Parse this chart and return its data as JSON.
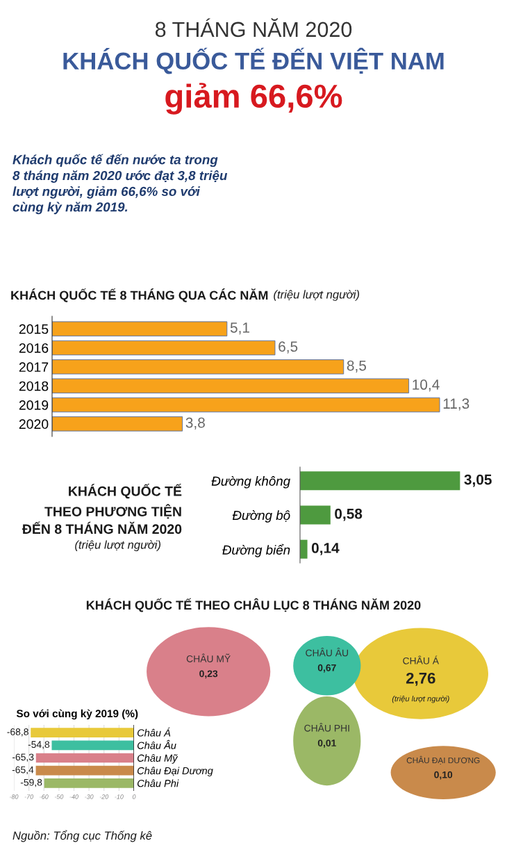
{
  "chart_data": [
    {
      "type": "other",
      "title": "8 THÁNG NĂM 2020",
      "subtitle": "KHÁCH QUỐC TẾ ĐẾN VIỆT NAM",
      "annotations": [
        "giảm 66,6%",
        "Khách quốc tế đến nước ta trong\n8 tháng năm 2020 ước đạt 3,8 triệu\nlượt người, giảm 66,6% so với\ncùng kỳ năm 2019."
      ]
    },
    {
      "type": "bar",
      "orientation": "horizontal",
      "title": "KHÁCH QUỐC TẾ 8 THÁNG QUA CÁC NĂM",
      "subtitle": "(triệu lượt người)",
      "categories": [
        "2015",
        "2016",
        "2017",
        "2018",
        "2019",
        "2020"
      ],
      "values": [
        5.1,
        6.5,
        8.5,
        10.4,
        11.3,
        3.8
      ],
      "color": "#f7a21b",
      "value_labels": [
        "5,1",
        "6,5",
        "8,5",
        "10,4",
        "11,3",
        "3,8"
      ],
      "tick_labels": "y"
    },
    {
      "type": "bar",
      "orientation": "horizontal",
      "title": "KHÁCH QUỐC TẾ\nTHEO PHƯƠNG TIỆN\nĐẾN 8 THÁNG NĂM 2020",
      "subtitle": "(triệu lượt người)",
      "categories": [
        "Đường không",
        "Đường bộ",
        "Đường biển"
      ],
      "values": [
        3.05,
        0.58,
        0.14
      ],
      "color": "#4e9a3f",
      "value_labels": [
        "3,05",
        "0,58",
        "0,14"
      ],
      "tick_labels": "y"
    },
    {
      "type": "other",
      "title": "KHÁCH QUỐC TẾ THEO CHÂU LỤC 8 THÁNG NĂM 2020",
      "categories": [
        "CHÂU Á",
        "CHÂU ÂU",
        "CHÂU MỸ",
        "CHÂU PHI",
        "CHÂU ĐẠI DƯƠNG"
      ],
      "values": [
        2.76,
        0.67,
        0.23,
        0.01,
        0.1
      ],
      "value_labels": [
        "2,76",
        "0,67",
        "0,23",
        "0,01",
        "0,10"
      ],
      "colors": [
        "#e8c93a",
        "#3dbfa0",
        "#d9808a",
        "#9bb866",
        "#c98a4b"
      ],
      "annotations": [
        "(triệu lượt người)"
      ]
    },
    {
      "type": "bar",
      "orientation": "horizontal",
      "title": "So với cùng kỳ 2019 (%)",
      "categories": [
        "Châu Á",
        "Châu Âu",
        "Châu Mỹ",
        "Châu Đại Dương",
        "Châu Phi"
      ],
      "values": [
        -68.8,
        -54.8,
        -65.3,
        -65.4,
        -59.8
      ],
      "colors": [
        "#e8c93a",
        "#3dbfa0",
        "#d9808a",
        "#c98a4b",
        "#9bb866"
      ],
      "value_labels": [
        "-68,8",
        "-54,8",
        "-65,3",
        "-65,4",
        "-59,8"
      ],
      "xlim": [
        -80,
        0
      ],
      "xticks": [
        -80,
        -70,
        -60,
        -50,
        -40,
        -30,
        -20,
        -10,
        0
      ],
      "grid": "x",
      "annotations": [
        "Nguồn: Tổng cục Thống kê"
      ]
    }
  ]
}
